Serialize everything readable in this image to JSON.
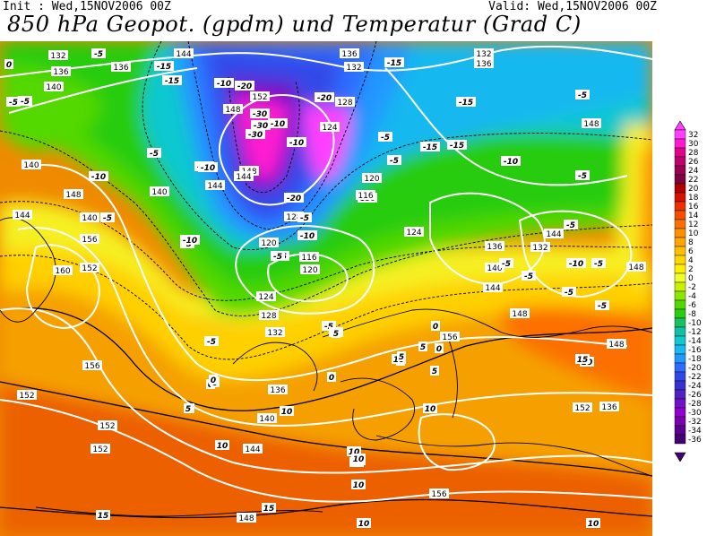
{
  "header": {
    "init": "Init : Wed,15NOV2006 00Z",
    "valid": "Valid: Wed,15NOV2006 00Z",
    "title": "850 hPa Geopot. (gpdm) und Temperatur (Grad C)"
  },
  "legend": {
    "values": [
      "32",
      "30",
      "28",
      "26",
      "24",
      "22",
      "20",
      "18",
      "16",
      "14",
      "12",
      "10",
      "8",
      "6",
      "4",
      "2",
      "0",
      "-2",
      "-4",
      "-6",
      "-8",
      "-10",
      "-12",
      "-14",
      "-16",
      "-18",
      "-20",
      "-22",
      "-24",
      "-26",
      "-28",
      "-30",
      "-32",
      "-34",
      "-36"
    ],
    "colors": [
      "#ff40ff",
      "#ff1ad1",
      "#e0008a",
      "#c0006a",
      "#9a0050",
      "#800040",
      "#b20000",
      "#d81000",
      "#ec3000",
      "#f45000",
      "#fb7000",
      "#fd9000",
      "#ffa400",
      "#ffbf00",
      "#ffd700",
      "#fff000",
      "#f0ff30",
      "#c8f000",
      "#8ee600",
      "#52d800",
      "#28cc10",
      "#18c060",
      "#10c0a0",
      "#10c8d0",
      "#18b8f0",
      "#2098ff",
      "#2d6cff",
      "#3048e8",
      "#3830d0",
      "#5020c0",
      "#7010c8",
      "#9000d0",
      "#7a00b0",
      "#5a0090",
      "#420070"
    ]
  },
  "geopotential_labels": [
    "132",
    "136",
    "136",
    "144",
    "136",
    "132",
    "132",
    "136",
    "140",
    "148",
    "152",
    "128",
    "124",
    "148",
    "144",
    "140",
    "144",
    "140",
    "148",
    "144",
    "140",
    "136",
    "148",
    "120",
    "116",
    "120",
    "124",
    "128",
    "116",
    "120",
    "124",
    "128",
    "132",
    "136",
    "132",
    "144",
    "148",
    "152",
    "156",
    "160",
    "156",
    "144",
    "136",
    "140",
    "140",
    "148",
    "152",
    "148",
    "152",
    "156",
    "152",
    "148",
    "144",
    "156",
    "136",
    "152"
  ],
  "temperature_labels": [
    "0",
    "-5",
    "-5",
    "-15",
    "-15",
    "-10",
    "-15",
    "-10",
    "-5",
    "-20",
    "-30",
    "-30",
    "-30",
    "-20",
    "-10",
    "-10",
    "-15",
    "-15",
    "-5",
    "-5",
    "-5",
    "-10",
    "-15",
    "-5",
    "-5",
    "-5",
    "-10",
    "-5",
    "-5",
    "-20",
    "-5",
    "-10",
    "-5",
    "-5",
    "-5",
    "-10",
    "-5",
    "-5",
    "-15",
    "0",
    "-5",
    "-10",
    "-5",
    "-5",
    "-5",
    "0",
    "0",
    "-5",
    "5",
    "5",
    "0",
    "5",
    "10",
    "10",
    "10",
    "10",
    "10",
    "10",
    "15",
    "10",
    "15",
    "10",
    "15",
    "10",
    "10",
    "10",
    "10",
    "5",
    "0",
    "5",
    "0",
    "0",
    "5",
    "5"
  ]
}
